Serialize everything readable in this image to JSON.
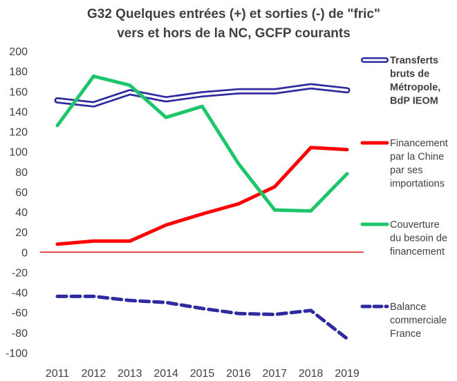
{
  "chart_data": {
    "type": "line",
    "title_lines": [
      "G32 Quelques  entrées (+) et sorties (-) de \"fric\"",
      "vers et hors de la NC, GCFP courants"
    ],
    "xlabel": "",
    "ylabel": "",
    "x": [
      2011,
      2012,
      2013,
      2014,
      2015,
      2016,
      2017,
      2018,
      2019
    ],
    "x_tick_labels": [
      "2011",
      "2012",
      "2013",
      "2014",
      "2015",
      "2016",
      "2017",
      "2018",
      "2019"
    ],
    "ylim": [
      -100,
      200
    ],
    "y_ticks": [
      -100,
      -80,
      -60,
      -40,
      -20,
      0,
      20,
      40,
      60,
      80,
      100,
      120,
      140,
      160,
      180,
      200
    ],
    "y_tick_labels": [
      "-100",
      "-80",
      "-60",
      "-40",
      "-20",
      "0",
      "20",
      "40",
      "60",
      "80",
      "100",
      "120",
      "140",
      "160",
      "180",
      "200"
    ],
    "grid": false,
    "zero_line_color": "#e00000",
    "legend_position": "right",
    "series": [
      {
        "name_lines": [
          "Transferts",
          "bruts de",
          "Métropole,",
          "BdP IEOM"
        ],
        "values": [
          151,
          147,
          159,
          152,
          157,
          160,
          160,
          165,
          161
        ],
        "color": "#2e2ba0",
        "style": "double"
      },
      {
        "name_lines": [
          "Financement",
          "par la Chine",
          "par ses",
          "importations"
        ],
        "values": [
          8,
          11,
          11,
          27,
          38,
          48,
          65,
          104,
          102
        ],
        "color": "#ff0000",
        "style": "solid"
      },
      {
        "name_lines": [
          "Couverture",
          "du besoin de",
          "financement"
        ],
        "values": [
          126,
          175,
          166,
          134,
          145,
          88,
          42,
          41,
          78
        ],
        "color": "#1ec66b",
        "style": "solid"
      },
      {
        "name_lines": [
          "Balance",
          "commerciale",
          "France"
        ],
        "values": [
          -44,
          -44,
          -48,
          -50,
          -56,
          -61,
          -62,
          -58,
          -86
        ],
        "color": "#2e2ba0",
        "style": "dashed"
      }
    ]
  }
}
